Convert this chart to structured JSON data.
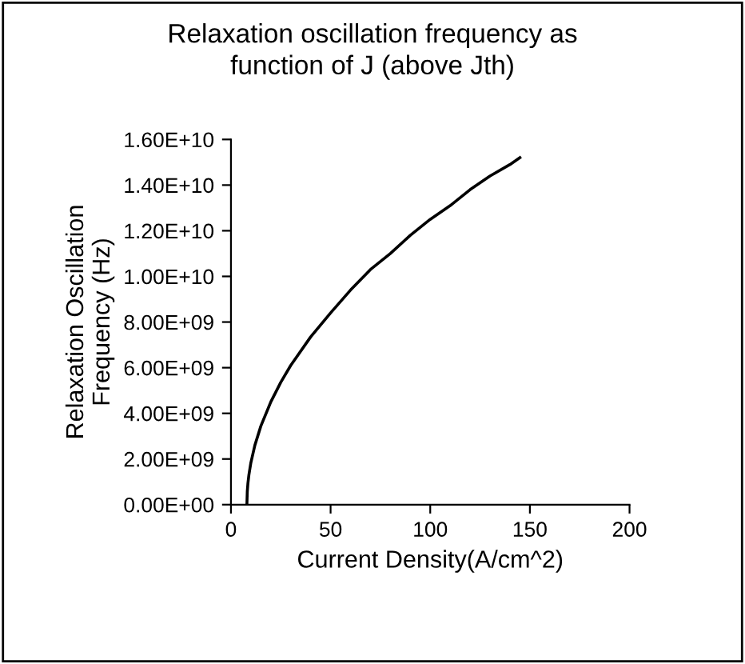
{
  "chart_data": {
    "type": "line",
    "title": "Relaxation oscillation frequency as\nfunction of J (above Jth)",
    "xlabel": "Current Density(A/cm^2)",
    "ylabel": "Relaxation Oscillation\nFrequency (Hz)",
    "x": [
      8,
      8.2,
      8.5,
      9,
      10,
      12,
      15,
      20,
      25,
      30,
      40,
      50,
      60,
      70,
      80,
      90,
      100,
      110,
      120,
      130,
      140,
      145
    ],
    "series": [
      {
        "color": "#000000",
        "values": [
          0,
          580000000,
          920000000,
          1300000000,
          1840000000,
          2600000000,
          3440000000,
          4500000000,
          5360000000,
          6100000000,
          7350000000,
          8400000000,
          9400000000,
          10300000000,
          11000000000,
          11800000000,
          12500000000,
          13100000000,
          13800000000,
          14400000000,
          14900000000,
          15200000000
        ]
      }
    ],
    "xlim": [
      0,
      200
    ],
    "xticks": [
      0,
      50,
      100,
      150,
      200
    ],
    "ylim": [
      0,
      16000000000
    ],
    "yticks": [
      {
        "value": 0,
        "label": "0.00E+00"
      },
      {
        "value": 2000000000,
        "label": "2.00E+09"
      },
      {
        "value": 4000000000,
        "label": "4.00E+09"
      },
      {
        "value": 6000000000,
        "label": "6.00E+09"
      },
      {
        "value": 8000000000,
        "label": "8.00E+09"
      },
      {
        "value": 10000000000,
        "label": "1.00E+10"
      },
      {
        "value": 12000000000,
        "label": "1.20E+10"
      },
      {
        "value": 14000000000,
        "label": "1.40E+10"
      },
      {
        "value": 16000000000,
        "label": "1.60E+10"
      }
    ],
    "marker": "none",
    "line_style": "solid"
  }
}
